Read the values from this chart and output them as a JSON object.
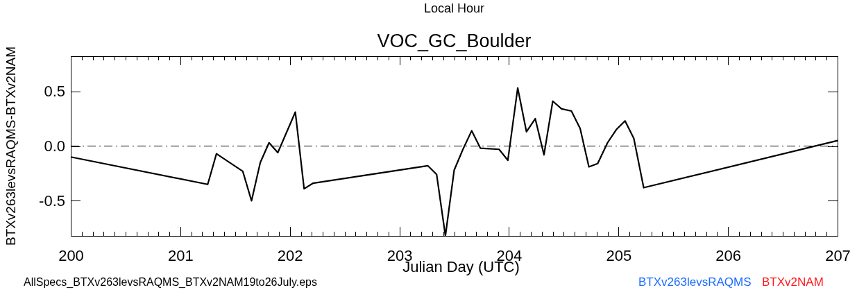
{
  "chart_data": {
    "type": "line",
    "title": "VOC_GC_Boulder",
    "x2label": "Local Hour",
    "xlabel": "Julian Day (UTC)",
    "ylabel": "BTXv263levsRAQMS-BTXv2NAM",
    "annotations": [
      "AllSpecs_BTXv263levsRAQMS_BTXv2NAM19to26July.eps",
      "BTXv263levsRAQMS",
      "BTXv2NAM"
    ],
    "xlim": [
      200,
      207
    ],
    "ylim": [
      -0.82,
      0.82
    ],
    "xticks": [
      200,
      {
        "value": 200.1,
        "label": null
      },
      {
        "value": 200.2,
        "label": null
      },
      {
        "value": 200.3,
        "label": null
      },
      {
        "value": 200.4,
        "label": null
      },
      {
        "value": 200.5,
        "label": null
      },
      {
        "value": 200.6,
        "label": null
      },
      {
        "value": 200.7,
        "label": null
      },
      {
        "value": 200.8,
        "label": null
      },
      {
        "value": 200.9,
        "label": null
      },
      201,
      {
        "value": 201.1,
        "label": null
      },
      {
        "value": 201.2,
        "label": null
      },
      {
        "value": 201.3,
        "label": null
      },
      {
        "value": 201.4,
        "label": null
      },
      {
        "value": 201.5,
        "label": null
      },
      {
        "value": 201.6,
        "label": null
      },
      {
        "value": 201.7,
        "label": null
      },
      {
        "value": 201.8,
        "label": null
      },
      {
        "value": 201.9,
        "label": null
      },
      202,
      {
        "value": 202.1,
        "label": null
      },
      {
        "value": 202.2,
        "label": null
      },
      {
        "value": 202.3,
        "label": null
      },
      {
        "value": 202.4,
        "label": null
      },
      {
        "value": 202.5,
        "label": null
      },
      {
        "value": 202.6,
        "label": null
      },
      {
        "value": 202.7,
        "label": null
      },
      {
        "value": 202.8,
        "label": null
      },
      {
        "value": 202.9,
        "label": null
      },
      203,
      {
        "value": 203.1,
        "label": null
      },
      {
        "value": 203.2,
        "label": null
      },
      {
        "value": 203.3,
        "label": null
      },
      {
        "value": 203.4,
        "label": null
      },
      {
        "value": 203.5,
        "label": null
      },
      {
        "value": 203.6,
        "label": null
      },
      {
        "value": 203.7,
        "label": null
      },
      {
        "value": 203.8,
        "label": null
      },
      {
        "value": 203.9,
        "label": null
      },
      204,
      {
        "value": 204.1,
        "label": null
      },
      {
        "value": 204.2,
        "label": null
      },
      {
        "value": 204.3,
        "label": null
      },
      {
        "value": 204.4,
        "label": null
      },
      {
        "value": 204.5,
        "label": null
      },
      {
        "value": 204.6,
        "label": null
      },
      {
        "value": 204.7,
        "label": null
      },
      {
        "value": 204.8,
        "label": null
      },
      {
        "value": 204.9,
        "label": null
      },
      205,
      {
        "value": 205.1,
        "label": null
      },
      {
        "value": 205.2,
        "label": null
      },
      {
        "value": 205.3,
        "label": null
      },
      {
        "value": 205.4,
        "label": null
      },
      {
        "value": 205.5,
        "label": null
      },
      {
        "value": 205.6,
        "label": null
      },
      {
        "value": 205.7,
        "label": null
      },
      {
        "value": 205.8,
        "label": null
      },
      {
        "value": 205.9,
        "label": null
      },
      206,
      {
        "value": 206.1,
        "label": null
      },
      {
        "value": 206.2,
        "label": null
      },
      {
        "value": 206.3,
        "label": null
      },
      {
        "value": 206.4,
        "label": null
      },
      {
        "value": 206.5,
        "label": null
      },
      {
        "value": 206.6,
        "label": null
      },
      {
        "value": 206.7,
        "label": null
      },
      {
        "value": 206.8,
        "label": null
      },
      {
        "value": 206.9,
        "label": null
      },
      207
    ],
    "yticks": [
      -0.5,
      {
        "value": 0,
        "label": "0.0"
      },
      0.5
    ],
    "ref_lines": [
      {
        "axis": "y",
        "value": 0,
        "line_style": "dashdot"
      }
    ],
    "series": [
      {
        "color": "#000000",
        "x": [
          200.0,
          201.25,
          201.33,
          201.57,
          201.65,
          201.73,
          201.81,
          201.89,
          202.05,
          202.13,
          202.21,
          203.26,
          203.34,
          203.42,
          203.5,
          203.58,
          203.66,
          203.74,
          203.91,
          203.99,
          204.08,
          204.16,
          204.24,
          204.32,
          204.4,
          204.48,
          204.57,
          204.65,
          204.73,
          204.81,
          204.9,
          204.98,
          205.06,
          205.14,
          205.23,
          207.0
        ],
        "values": [
          -0.1,
          -0.35,
          -0.07,
          -0.23,
          -0.5,
          -0.15,
          0.03,
          -0.06,
          0.31,
          -0.39,
          -0.34,
          -0.18,
          -0.26,
          -0.82,
          -0.22,
          -0.03,
          0.14,
          -0.02,
          -0.03,
          -0.13,
          0.53,
          0.13,
          0.25,
          -0.08,
          0.41,
          0.34,
          0.32,
          0.16,
          -0.19,
          -0.16,
          0.03,
          0.15,
          0.23,
          0.07,
          -0.38,
          0.05
        ]
      }
    ]
  }
}
